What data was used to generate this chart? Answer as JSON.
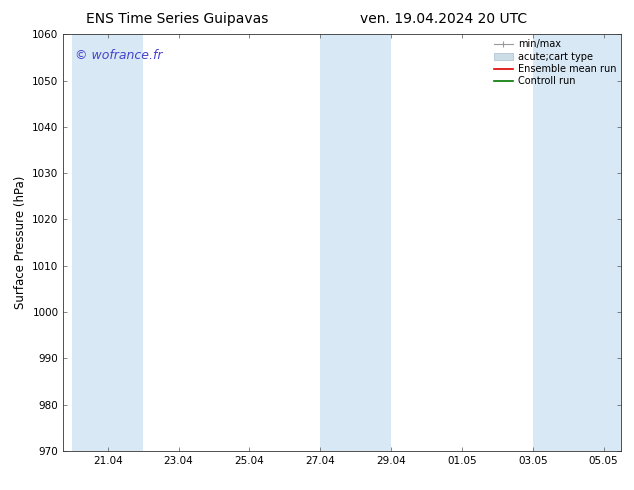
{
  "title_left": "ENS Time Series Guipavas",
  "title_right": "ven. 19.04.2024 20 UTC",
  "ylabel": "Surface Pressure (hPa)",
  "ylim": [
    970,
    1060
  ],
  "yticks": [
    970,
    980,
    990,
    1000,
    1010,
    1020,
    1030,
    1040,
    1050,
    1060
  ],
  "xtick_labels": [
    "21.04",
    "23.04",
    "25.04",
    "27.04",
    "29.04",
    "01.05",
    "03.05",
    "05.05"
  ],
  "watermark": "© wofrance.fr",
  "watermark_color": "#4444cc",
  "bg_color": "#ffffff",
  "plot_bg_color": "#ffffff",
  "shaded_band_color": "#d8e8f5",
  "legend_entries": [
    {
      "label": "min/max",
      "color": "#aaaaaa",
      "lw": 1.0
    },
    {
      "label": "acute;cart type",
      "color": "#d0e4f0",
      "lw": 6
    },
    {
      "label": "Ensemble mean run",
      "color": "#dd0000",
      "lw": 1.2
    },
    {
      "label": "Controll run",
      "color": "#007700",
      "lw": 1.2
    }
  ],
  "tick_fontsize": 7.5,
  "label_fontsize": 8.5,
  "title_fontsize": 10,
  "watermark_fontsize": 9
}
